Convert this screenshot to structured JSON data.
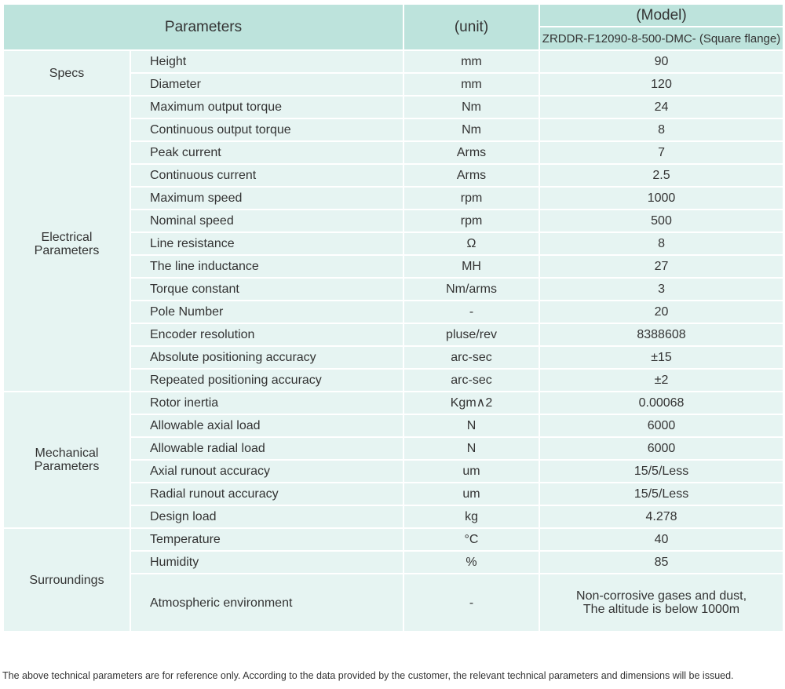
{
  "header": {
    "parameters": "Parameters",
    "unit": "(unit)",
    "model": "(Model)",
    "model_name": "ZRDDR-F12090-8-500-DMC- (Square flange)"
  },
  "groups": [
    {
      "name": "Specs",
      "rows": [
        [
          "Height",
          "mm",
          "90"
        ],
        [
          "Diameter",
          "mm",
          "120"
        ]
      ]
    },
    {
      "name": "Electrical Parameters",
      "rows": [
        [
          "Maximum output torque",
          "Nm",
          "24"
        ],
        [
          "Continuous output torque",
          "Nm",
          "8"
        ],
        [
          "Peak current",
          "Arms",
          "7"
        ],
        [
          "Continuous current",
          "Arms",
          "2.5"
        ],
        [
          "Maximum speed",
          "rpm",
          "1000"
        ],
        [
          "Nominal speed",
          "rpm",
          "500"
        ],
        [
          "Line resistance",
          "Ω",
          "8"
        ],
        [
          "The line inductance",
          "MH",
          "27"
        ],
        [
          "Torque constant",
          "Nm/arms",
          "3"
        ],
        [
          "Pole Number",
          "-",
          "20"
        ],
        [
          "Encoder resolution",
          "pluse/rev",
          "8388608"
        ],
        [
          "Absolute positioning accuracy",
          "arc-sec",
          "±15"
        ],
        [
          "Repeated positioning accuracy",
          "arc-sec",
          "±2"
        ]
      ]
    },
    {
      "name": "Mechanical Parameters",
      "rows": [
        [
          "Rotor inertia",
          "Kgm∧2",
          "0.00068"
        ],
        [
          "Allowable axial load",
          "N",
          "6000"
        ],
        [
          "Allowable radial load",
          "N",
          "6000"
        ],
        [
          "Axial runout accuracy",
          "um",
          "15/5/Less"
        ],
        [
          "Radial runout accuracy",
          "um",
          "15/5/Less"
        ],
        [
          "Design load",
          "kg",
          "4.278"
        ]
      ]
    },
    {
      "name": "Surroundings",
      "rows": [
        [
          "Temperature",
          "°C",
          "40"
        ],
        [
          "Humidity",
          "%",
          "85"
        ],
        [
          "Atmospheric environment",
          "-",
          "Non-corrosive gases and dust,\nThe altitude is below 1000m"
        ]
      ]
    }
  ],
  "footer": "The above technical parameters are for reference only. According to the data provided by the customer, the relevant technical parameters and dimensions will be issued.",
  "colors": {
    "header_bg": "#bde3dc",
    "body_bg": "#e6f4f2"
  }
}
